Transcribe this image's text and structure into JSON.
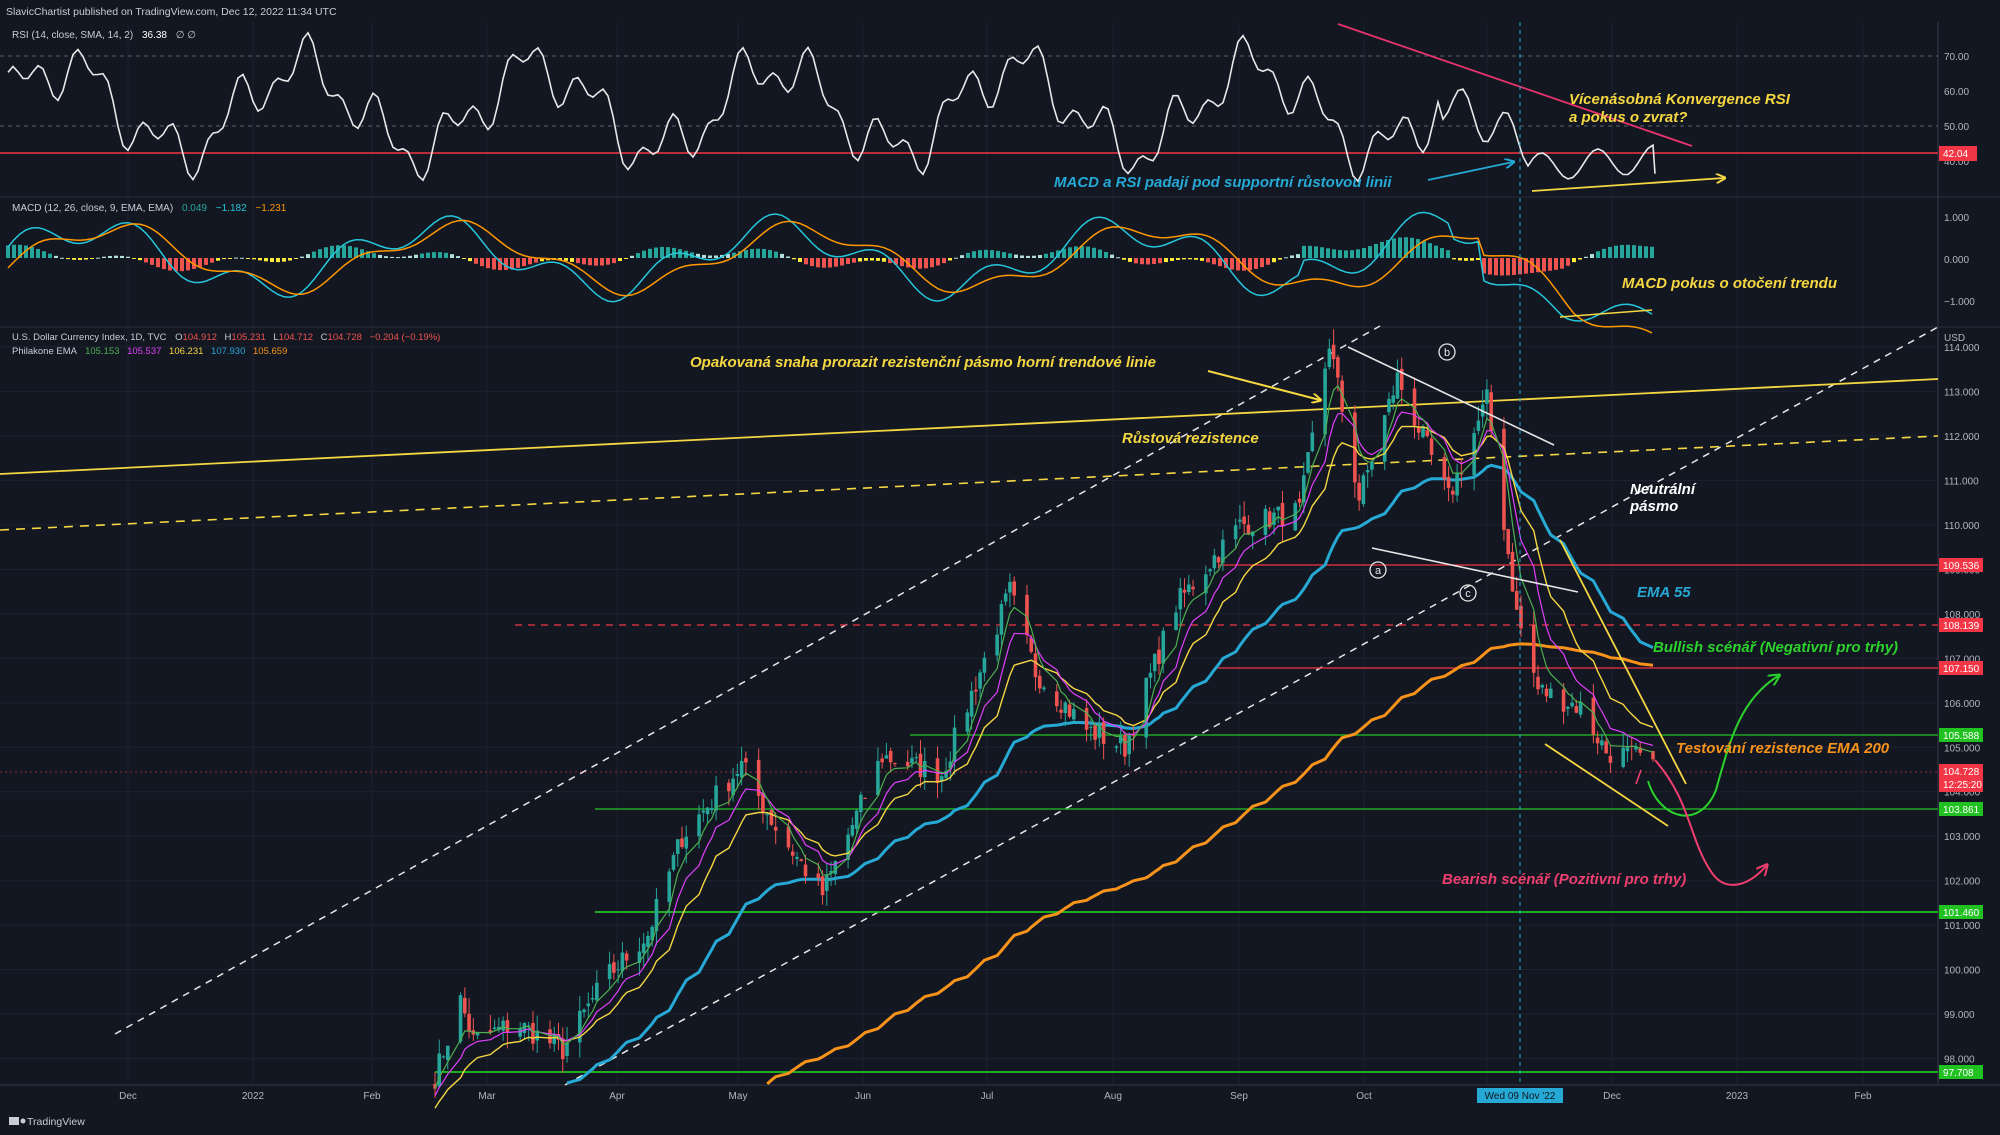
{
  "header": {
    "publish_line": "SlavicChartist published on TradingView.com, Dec 12, 2022 11:34 UTC",
    "footer_brand": "TradingView"
  },
  "rsi_pane": {
    "label_name": "RSI (14, close, SMA, 14, 2)",
    "label_value": "36.38",
    "label_extra": "∅ ∅",
    "ticks": [
      "70.00",
      "60.00",
      "50.00",
      "40.00"
    ],
    "badge": "42.04",
    "colors": {
      "line": "#e8e8e8",
      "support": "#f23645"
    }
  },
  "macd_pane": {
    "label_name": "MACD (12, 26, close, 9, EMA, EMA)",
    "v1": "0.049",
    "v2": "−1.182",
    "v3": "−1.231",
    "ticks": [
      "1.000",
      "0.000",
      "−1.000"
    ],
    "colors": {
      "macd": "#26c6da",
      "signal": "#ff9800"
    }
  },
  "price_pane": {
    "legend_line1": "U.S. Dollar Currency Index, 1D, TVC",
    "ohlc": {
      "o_label": "O",
      "o": "104.912",
      "h_label": "H",
      "h": "105.231",
      "l_label": "L",
      "l": "104.712",
      "c_label": "C",
      "c": "104.728",
      "change": "−0.204 (−0.19%)"
    },
    "legend_line2": "Philakone EMA",
    "ema_values": [
      "105.153",
      "105.537",
      "106.231",
      "107.930",
      "105.659"
    ],
    "axis_unit": "USD",
    "ticks": [
      "114.000",
      "113.000",
      "112.000",
      "111.000",
      "110.000",
      "109.000",
      "108.000",
      "107.000",
      "106.000",
      "105.000",
      "104.000",
      "103.000",
      "102.000",
      "101.000",
      "100.000",
      "99.000",
      "98.000"
    ],
    "level_badges": {
      "r1": "109.536",
      "r2": "108.139",
      "r3": "107.150",
      "s1": "105.588",
      "last": "104.728",
      "countdown": "12:25:20",
      "s2": "103.861",
      "s3": "101.460",
      "s4": "97.708"
    },
    "colors": {
      "bull": "#26a69a",
      "bear": "#ef5350",
      "ema55": "#26a9d4",
      "ema200": "#f7931a",
      "resist_line": "#f5d742"
    }
  },
  "time_axis": {
    "labels": [
      "Dec",
      "2022",
      "Feb",
      "Mar",
      "Apr",
      "May",
      "Jun",
      "Jul",
      "Aug",
      "Sep",
      "Oct",
      "Nov",
      "Dec",
      "2023",
      "Feb"
    ],
    "cursor_label": "Wed 09 Nov '22"
  },
  "annotations": {
    "rsi_convergence_1": "Vícenásobná Konvergence RSI",
    "rsi_convergence_2": "a pokus o zvrat?",
    "macd_rsi_fall": "MACD a RSI padají pod supportní růstovou linii",
    "macd_attempt": "MACD pokus o otočení trendu",
    "repeated_attempt": "Opakovaná snaha prorazit rezistenční pásmo horní trendové linie",
    "growth_resistance": "Růstová rezistence",
    "neutral_1": "Neutrální",
    "neutral_2": "pásmo",
    "ema55": "EMA 55",
    "bullish": "Bullish scénář (Negativní pro trhy)",
    "testing": "Testování rezistence EMA 200",
    "bearish": "Bearish scénář (Pozitivní pro trhy)",
    "wave_a": "a",
    "wave_b": "b",
    "wave_c": "c"
  },
  "chart_data": {
    "type": "candlestick",
    "title": "U.S. Dollar Currency Index, 1D, TVC",
    "ylabel": "USD",
    "ylim": [
      97.5,
      114.9
    ],
    "x_labels": [
      "Dec",
      "2022",
      "Feb",
      "Mar",
      "Apr",
      "May",
      "Jun",
      "Jul",
      "Aug",
      "Sep",
      "Oct",
      "Nov",
      "Dec",
      "2023",
      "Feb"
    ],
    "date_range": [
      "2022-03-01",
      "2022-12-12"
    ],
    "close_path": [
      [
        "2022-03-01",
        97.6
      ],
      [
        "2022-03-07",
        99.3
      ],
      [
        "2022-03-10",
        98.4
      ],
      [
        "2022-03-20",
        98.8
      ],
      [
        "2022-03-31",
        98.2
      ],
      [
        "2022-04-10",
        99.8
      ],
      [
        "2022-04-20",
        100.8
      ],
      [
        "2022-04-28",
        103.0
      ],
      [
        "2022-05-12",
        104.6
      ],
      [
        "2022-05-20",
        103.2
      ],
      [
        "2022-05-31",
        101.7
      ],
      [
        "2022-06-14",
        104.8
      ],
      [
        "2022-06-28",
        104.4
      ],
      [
        "2022-07-14",
        108.5
      ],
      [
        "2022-07-20",
        106.7
      ],
      [
        "2022-08-01",
        105.4
      ],
      [
        "2022-08-10",
        105.0
      ],
      [
        "2022-08-22",
        108.2
      ],
      [
        "2022-09-06",
        110.0
      ],
      [
        "2022-09-20",
        110.3
      ],
      [
        "2022-09-27",
        114.1
      ],
      [
        "2022-10-04",
        110.6
      ],
      [
        "2022-10-13",
        113.3
      ],
      [
        "2022-10-25",
        110.6
      ],
      [
        "2022-11-03",
        112.8
      ],
      [
        "2022-11-10",
        108.0
      ],
      [
        "2022-11-15",
        106.3
      ],
      [
        "2022-11-25",
        105.9
      ],
      [
        "2022-12-01",
        104.9
      ],
      [
        "2022-12-12",
        104.728
      ]
    ],
    "series": [
      {
        "name": "U.S. Dollar Currency Index",
        "last": 104.728,
        "open": 104.912,
        "high": 105.231,
        "low": 104.712,
        "close": 104.728
      },
      {
        "name": "Philakone EMA",
        "values": [
          105.153,
          105.537,
          106.231,
          107.93,
          105.659
        ]
      }
    ],
    "horizontal_levels": [
      109.536,
      108.139,
      107.15,
      105.588,
      103.861,
      101.46,
      97.708
    ],
    "rsi": {
      "last": 36.38,
      "support_level": 42.04,
      "ylim": [
        30,
        80
      ]
    },
    "macd": {
      "macd": 0.049,
      "signal": -1.182,
      "histogram": -1.231,
      "ylim": [
        -1.5,
        1.5
      ]
    },
    "grid": true
  }
}
